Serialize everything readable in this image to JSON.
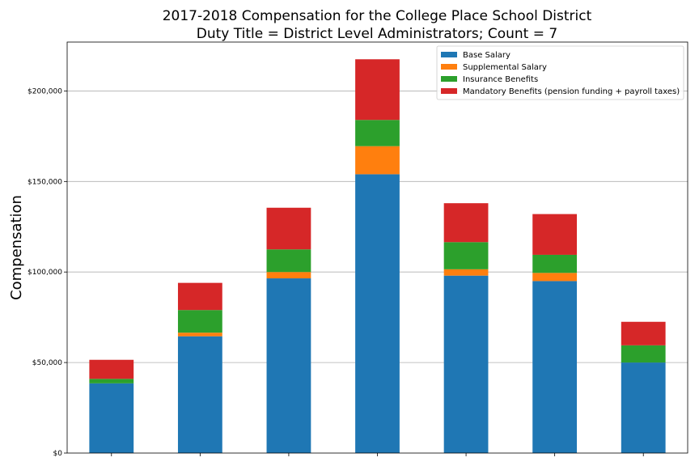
{
  "chart_data": {
    "type": "bar",
    "stacked": true,
    "title": "2017-2018 Compensation for the College Place School District",
    "subtitle": "Duty Title = District Level Administrators; Count = 7",
    "xlabel": "",
    "ylabel": "Compensation",
    "ylim": [
      0,
      227000
    ],
    "yticks": [
      0,
      50000,
      100000,
      150000,
      200000
    ],
    "ytick_labels": [
      "$0",
      "$50,000",
      "$100,000",
      "$150,000",
      "$200,000"
    ],
    "grid": "horizontal",
    "legend_position": "top-right",
    "categories": [
      "",
      "",
      "",
      "",
      "",
      "",
      ""
    ],
    "series": [
      {
        "name": "Base Salary",
        "color": "#1f77b4",
        "values": [
          38500,
          64500,
          96500,
          154000,
          98000,
          95000,
          50000
        ]
      },
      {
        "name": "Supplemental Salary",
        "color": "#ff7f0e",
        "values": [
          0,
          2000,
          3500,
          15500,
          3500,
          4500,
          0
        ]
      },
      {
        "name": "Insurance Benefits",
        "color": "#2ca02c",
        "values": [
          2500,
          12500,
          12500,
          14500,
          15000,
          10000,
          9500
        ]
      },
      {
        "name": "Mandatory Benefits (pension funding + payroll taxes)",
        "color": "#d62728",
        "values": [
          10500,
          15000,
          23000,
          33500,
          21500,
          22500,
          13000
        ]
      }
    ]
  }
}
